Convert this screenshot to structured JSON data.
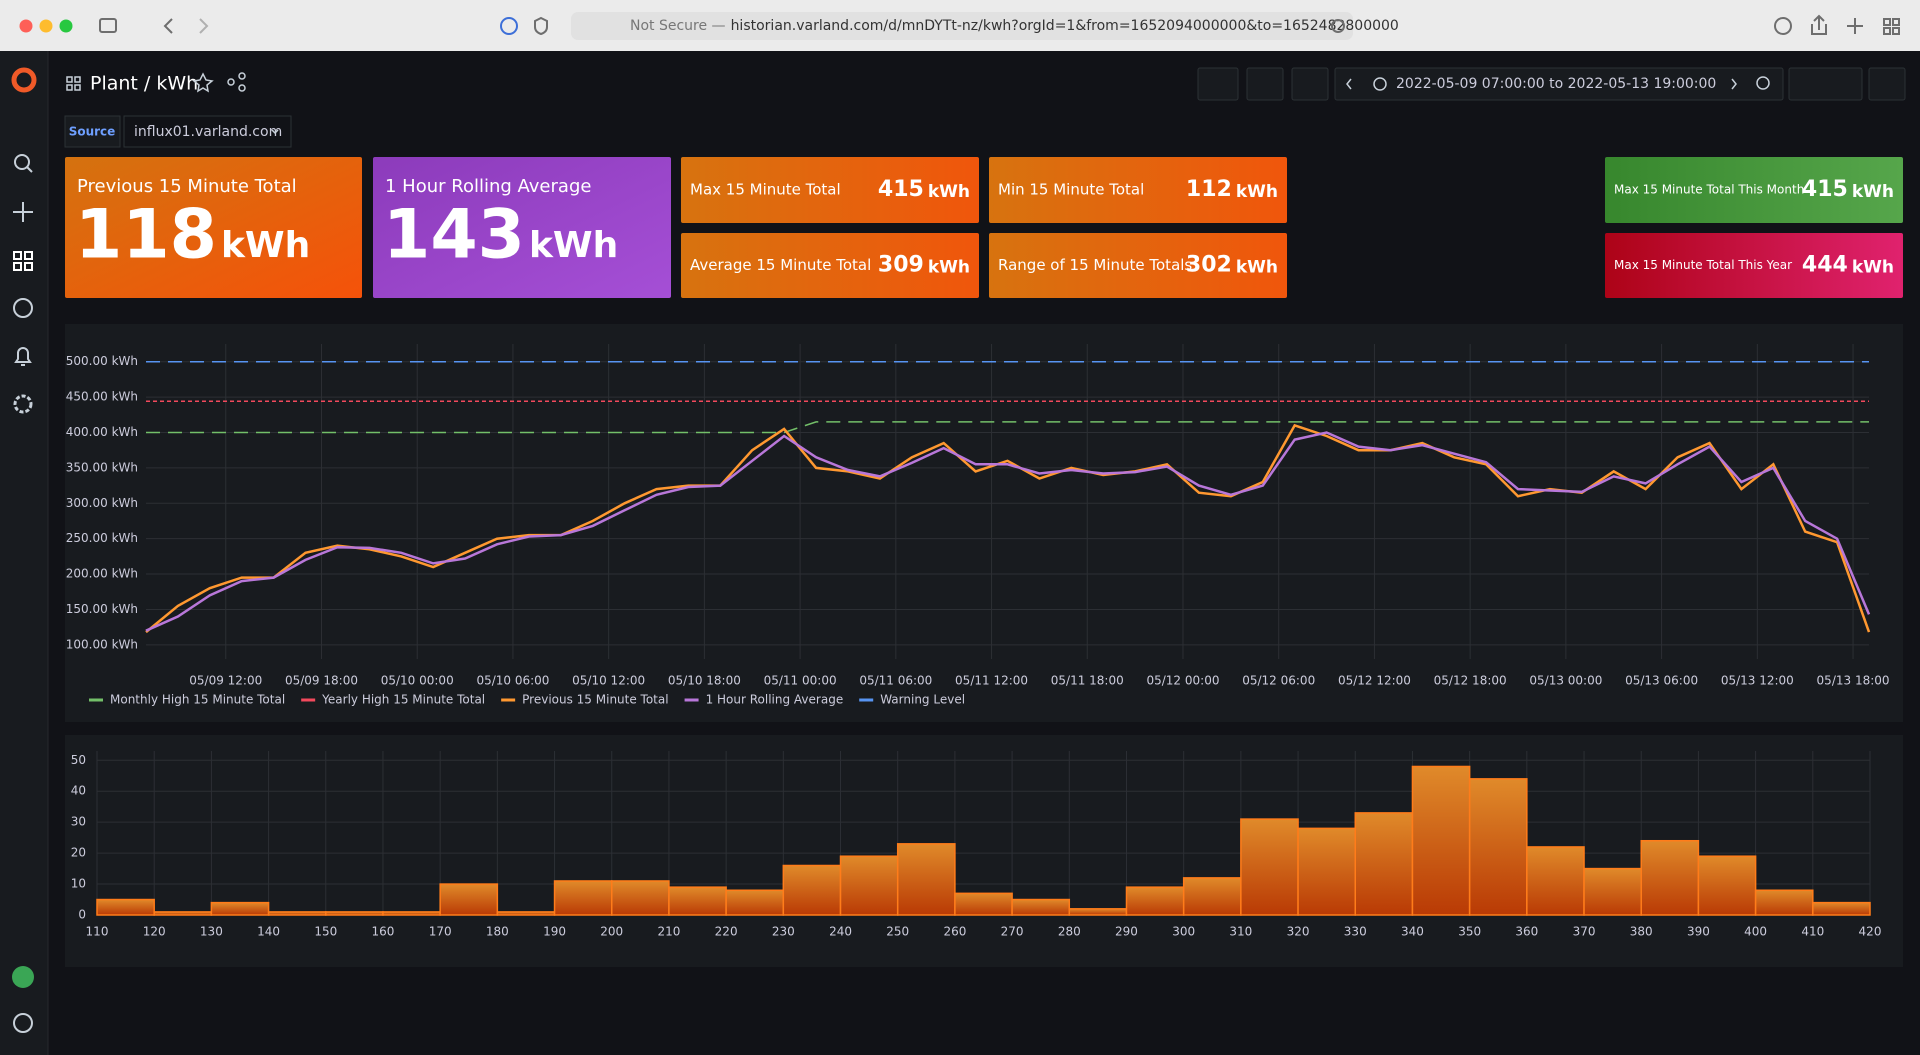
{
  "browser": {
    "security": "Not Secure —",
    "url": "historian.varland.com/d/mnDYTt-nz/kwh?orgId=1&from=1652094000000&to=1652482800000"
  },
  "header": {
    "breadcrumb": "Plant / kWh",
    "time_range": "2022-05-09 07:00:00 to 2022-05-13 19:00:00"
  },
  "variables": {
    "label": "Source",
    "value": "influx01.varland.com"
  },
  "stats": [
    {
      "title": "Previous 15 Minute Total",
      "value": 118,
      "unit": "kWh"
    },
    {
      "title": "1 Hour Rolling Average",
      "value": 143,
      "unit": "kWh"
    },
    {
      "title": "Max 15 Minute Total",
      "value": 415,
      "unit": "kWh"
    },
    {
      "title": "Min 15 Minute Total",
      "value": 112,
      "unit": "kWh"
    },
    {
      "title": "Average 15 Minute Total",
      "value": 309,
      "unit": "kWh"
    },
    {
      "title": "Range of 15 Minute Totals",
      "value": 302,
      "unit": "kWh"
    },
    {
      "title": "Max 15 Minute Total This Month",
      "value": 415,
      "unit": "kWh"
    },
    {
      "title": "Max 15 Minute Total This Year",
      "value": 444,
      "unit": "kWh"
    }
  ],
  "chart_data": [
    {
      "type": "line",
      "x": [
        "05/09 07:00",
        "05/09 09:00",
        "05/09 11:00",
        "05/09 13:00",
        "05/09 15:00",
        "05/09 17:00",
        "05/09 19:00",
        "05/09 21:00",
        "05/09 23:00",
        "05/10 01:00",
        "05/10 03:00",
        "05/10 05:00",
        "05/10 07:00",
        "05/10 09:00",
        "05/10 11:00",
        "05/10 13:00",
        "05/10 15:00",
        "05/10 17:00",
        "05/10 19:00",
        "05/10 21:00",
        "05/10 23:00",
        "05/11 01:00",
        "05/11 03:00",
        "05/11 05:00",
        "05/11 07:00",
        "05/11 09:00",
        "05/11 11:00",
        "05/11 13:00",
        "05/11 15:00",
        "05/11 17:00",
        "05/11 19:00",
        "05/11 21:00",
        "05/11 23:00",
        "05/12 01:00",
        "05/12 03:00",
        "05/12 05:00",
        "05/12 07:00",
        "05/12 09:00",
        "05/12 11:00",
        "05/12 13:00",
        "05/12 15:00",
        "05/12 17:00",
        "05/12 19:00",
        "05/12 21:00",
        "05/12 23:00",
        "05/13 01:00",
        "05/13 03:00",
        "05/13 05:00",
        "05/13 07:00",
        "05/13 09:00",
        "05/13 11:00",
        "05/13 13:00",
        "05/13 15:00",
        "05/13 17:00",
        "05/13 19:00"
      ],
      "xlim": [
        "05/09 07:00",
        "05/13 19:00"
      ],
      "xticks": [
        "05/09 12:00",
        "05/09 18:00",
        "05/10 00:00",
        "05/10 06:00",
        "05/10 12:00",
        "05/10 18:00",
        "05/11 00:00",
        "05/11 06:00",
        "05/11 12:00",
        "05/11 18:00",
        "05/12 00:00",
        "05/12 06:00",
        "05/12 12:00",
        "05/12 18:00",
        "05/13 00:00",
        "05/13 06:00",
        "05/13 12:00",
        "05/13 18:00"
      ],
      "ylim": [
        80,
        525
      ],
      "yticks": [
        {
          "value": 100,
          "label": "100.00 kWh"
        },
        {
          "value": 150,
          "label": "150.00 kWh"
        },
        {
          "value": 200,
          "label": "200.00 kWh"
        },
        {
          "value": 250,
          "label": "250.00 kWh"
        },
        {
          "value": 300,
          "label": "300.00 kWh"
        },
        {
          "value": 350,
          "label": "350.00 kWh"
        },
        {
          "value": 400,
          "label": "400.00 kWh"
        },
        {
          "value": 450,
          "label": "450.00 kWh"
        },
        {
          "value": 500,
          "label": "500.00 kWh"
        }
      ],
      "grid": true,
      "legend": "bottom",
      "series": [
        {
          "name": "Monthly High 15 Minute Total",
          "color": "#73bf69",
          "style": "dashed",
          "values": [
            400,
            400,
            400,
            400,
            400,
            400,
            400,
            400,
            400,
            400,
            400,
            400,
            400,
            400,
            400,
            400,
            400,
            400,
            400,
            400,
            400,
            415,
            415,
            415,
            415,
            415,
            415,
            415,
            415,
            415,
            415,
            415,
            415,
            415,
            415,
            415,
            415,
            415,
            415,
            415,
            415,
            415,
            415,
            415,
            415,
            415,
            415,
            415,
            415,
            415,
            415,
            415,
            415,
            415,
            415
          ]
        },
        {
          "name": "Yearly High 15 Minute Total",
          "color": "#f2495c",
          "style": "dotted",
          "values": [
            444,
            444,
            444,
            444,
            444,
            444,
            444,
            444,
            444,
            444,
            444,
            444,
            444,
            444,
            444,
            444,
            444,
            444,
            444,
            444,
            444,
            444,
            444,
            444,
            444,
            444,
            444,
            444,
            444,
            444,
            444,
            444,
            444,
            444,
            444,
            444,
            444,
            444,
            444,
            444,
            444,
            444,
            444,
            444,
            444,
            444,
            444,
            444,
            444,
            444,
            444,
            444,
            444,
            444,
            444
          ]
        },
        {
          "name": "Previous 15 Minute Total",
          "color": "#ff9830",
          "style": "solid",
          "values": [
            118,
            155,
            180,
            195,
            195,
            230,
            240,
            235,
            225,
            210,
            230,
            250,
            255,
            255,
            275,
            300,
            320,
            325,
            325,
            375,
            405,
            350,
            345,
            335,
            365,
            385,
            345,
            360,
            335,
            350,
            340,
            345,
            355,
            315,
            310,
            330,
            410,
            395,
            375,
            375,
            385,
            365,
            355,
            310,
            320,
            315,
            345,
            320,
            365,
            385,
            320,
            355,
            260,
            245,
            118
          ]
        },
        {
          "name": "1 Hour Rolling Average",
          "color": "#b877d9",
          "style": "solid",
          "values": [
            120,
            140,
            170,
            190,
            195,
            220,
            238,
            237,
            230,
            215,
            222,
            242,
            253,
            255,
            268,
            290,
            312,
            323,
            325,
            360,
            395,
            365,
            347,
            338,
            357,
            378,
            355,
            355,
            342,
            347,
            342,
            344,
            352,
            325,
            312,
            325,
            390,
            400,
            380,
            375,
            382,
            370,
            358,
            320,
            318,
            316,
            338,
            328,
            355,
            380,
            330,
            350,
            275,
            250,
            143
          ]
        },
        {
          "name": "Warning Level",
          "color": "#5794f2",
          "style": "dashed",
          "values": [
            500,
            500,
            500,
            500,
            500,
            500,
            500,
            500,
            500,
            500,
            500,
            500,
            500,
            500,
            500,
            500,
            500,
            500,
            500,
            500,
            500,
            500,
            500,
            500,
            500,
            500,
            500,
            500,
            500,
            500,
            500,
            500,
            500,
            500,
            500,
            500,
            500,
            500,
            500,
            500,
            500,
            500,
            500,
            500,
            500,
            500,
            500,
            500,
            500,
            500,
            500,
            500,
            500,
            500,
            500
          ]
        }
      ]
    },
    {
      "type": "histogram",
      "bins": [
        110,
        120,
        130,
        140,
        150,
        160,
        170,
        180,
        190,
        200,
        210,
        220,
        230,
        240,
        250,
        260,
        270,
        280,
        290,
        300,
        310,
        320,
        330,
        340,
        350,
        360,
        370,
        380,
        390,
        400,
        410,
        420
      ],
      "values": [
        5,
        1,
        4,
        1,
        1,
        1,
        10,
        1,
        11,
        11,
        9,
        8,
        16,
        19,
        23,
        7,
        5,
        2,
        9,
        12,
        31,
        28,
        33,
        48,
        44,
        22,
        15,
        24,
        19,
        8,
        4
      ],
      "color": "#ff7c1a",
      "xlim": [
        110,
        420
      ],
      "xticks": [
        110,
        120,
        130,
        140,
        150,
        160,
        170,
        180,
        190,
        200,
        210,
        220,
        230,
        240,
        250,
        260,
        270,
        280,
        290,
        300,
        310,
        320,
        330,
        340,
        350,
        360,
        370,
        380,
        390,
        400,
        410,
        420
      ],
      "ylim": [
        0,
        53
      ],
      "yticks": [
        0,
        10,
        20,
        30,
        40,
        50
      ],
      "grid": true
    }
  ]
}
